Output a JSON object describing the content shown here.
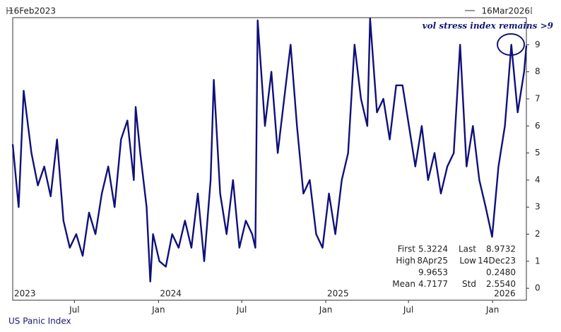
{
  "chart_data": {
    "type": "line",
    "start_label": "16Feb2023",
    "end_label": "16Mar2026",
    "annotation": "vol stress index remains >9",
    "footer": "US Panic Index",
    "x": [
      "2023-02-16",
      "2023-03-01",
      "2023-03-12",
      "2023-03-29",
      "2023-04-12",
      "2023-04-26",
      "2023-05-10",
      "2023-05-24",
      "2023-06-07",
      "2023-06-21",
      "2023-07-05",
      "2023-07-19",
      "2023-08-02",
      "2023-08-16",
      "2023-08-30",
      "2023-09-13",
      "2023-09-27",
      "2023-10-11",
      "2023-10-25",
      "2023-11-08",
      "2023-11-12",
      "2023-11-22",
      "2023-12-06",
      "2023-12-14",
      "2023-12-20",
      "2024-01-03",
      "2024-01-17",
      "2024-01-31",
      "2024-02-14",
      "2024-02-28",
      "2024-03-13",
      "2024-03-27",
      "2024-04-10",
      "2024-04-24",
      "2024-05-01",
      "2024-05-15",
      "2024-05-29",
      "2024-06-12",
      "2024-06-26",
      "2024-07-10",
      "2024-07-24",
      "2024-07-31",
      "2024-08-05",
      "2024-08-21",
      "2024-09-04",
      "2024-09-18",
      "2024-10-02",
      "2024-10-16",
      "2024-10-30",
      "2024-11-13",
      "2024-11-27",
      "2024-12-11",
      "2024-12-25",
      "2025-01-08",
      "2025-01-22",
      "2025-02-05",
      "2025-02-19",
      "2025-03-05",
      "2025-03-19",
      "2025-04-02",
      "2025-04-08",
      "2025-04-23",
      "2025-05-07",
      "2025-05-21",
      "2025-06-04",
      "2025-06-18",
      "2025-07-02",
      "2025-07-16",
      "2025-07-30",
      "2025-08-13",
      "2025-08-27",
      "2025-09-10",
      "2025-09-24",
      "2025-10-08",
      "2025-10-22",
      "2025-11-05",
      "2025-11-19",
      "2025-12-03",
      "2025-12-17",
      "2025-12-31",
      "2026-01-14",
      "2026-01-28",
      "2026-02-11",
      "2026-02-25",
      "2026-03-11",
      "2026-03-16"
    ],
    "series": [
      {
        "name": "US Panic Index",
        "color": "#10107a",
        "values": [
          5.32,
          3.0,
          7.3,
          5.0,
          3.8,
          4.5,
          3.4,
          5.5,
          2.5,
          1.5,
          2.0,
          1.2,
          2.8,
          2.0,
          3.5,
          4.5,
          3.0,
          5.5,
          6.2,
          4.0,
          6.7,
          5.0,
          3.0,
          0.25,
          2.0,
          1.0,
          0.8,
          2.0,
          1.5,
          2.5,
          1.5,
          3.5,
          1.0,
          4.0,
          7.7,
          3.5,
          2.0,
          4.0,
          1.5,
          2.5,
          2.0,
          1.5,
          9.9,
          6.0,
          8.0,
          5.0,
          7.0,
          9.0,
          6.0,
          3.5,
          4.0,
          2.0,
          1.5,
          3.5,
          2.0,
          4.0,
          5.0,
          9.0,
          7.0,
          6.0,
          9.97,
          6.5,
          7.0,
          5.5,
          7.5,
          7.5,
          6.0,
          4.5,
          6.0,
          4.0,
          5.0,
          3.5,
          4.5,
          5.0,
          9.0,
          4.5,
          6.0,
          4.0,
          3.0,
          1.9,
          4.5,
          6.0,
          9.0,
          6.5,
          8.0,
          8.97
        ]
      }
    ],
    "xlim": [
      "2023-02-16",
      "2026-03-16"
    ],
    "xticks": [
      {
        "value": "2023-07-01",
        "label": "Jul"
      },
      {
        "value": "2024-01-01",
        "label": "Jan"
      },
      {
        "value": "2024-07-01",
        "label": "Jul"
      },
      {
        "value": "2025-01-01",
        "label": "Jan"
      },
      {
        "value": "2025-07-01",
        "label": "Jul"
      },
      {
        "value": "2026-01-01",
        "label": "Jan"
      }
    ],
    "year_labels": [
      {
        "value": "2023-02-16",
        "label": "2023"
      },
      {
        "value": "2024-01-01",
        "label": "2024"
      },
      {
        "value": "2025-01-01",
        "label": "2025"
      },
      {
        "value": "2026-01-01",
        "label": "2026"
      }
    ],
    "ylim": [
      -0.44,
      10
    ],
    "yticks": [
      0,
      1,
      2,
      3,
      4,
      5,
      6,
      7,
      8,
      9
    ],
    "grid": false,
    "stats": [
      [
        "First",
        "5.3224",
        "Last",
        "8.9732"
      ],
      [
        "High",
        "8Apr25",
        "Low",
        "14Dec23"
      ],
      [
        "9.9653",
        "0.2480"
      ],
      [
        "Mean",
        "4.7177",
        "Std",
        "2.5540"
      ]
    ]
  }
}
